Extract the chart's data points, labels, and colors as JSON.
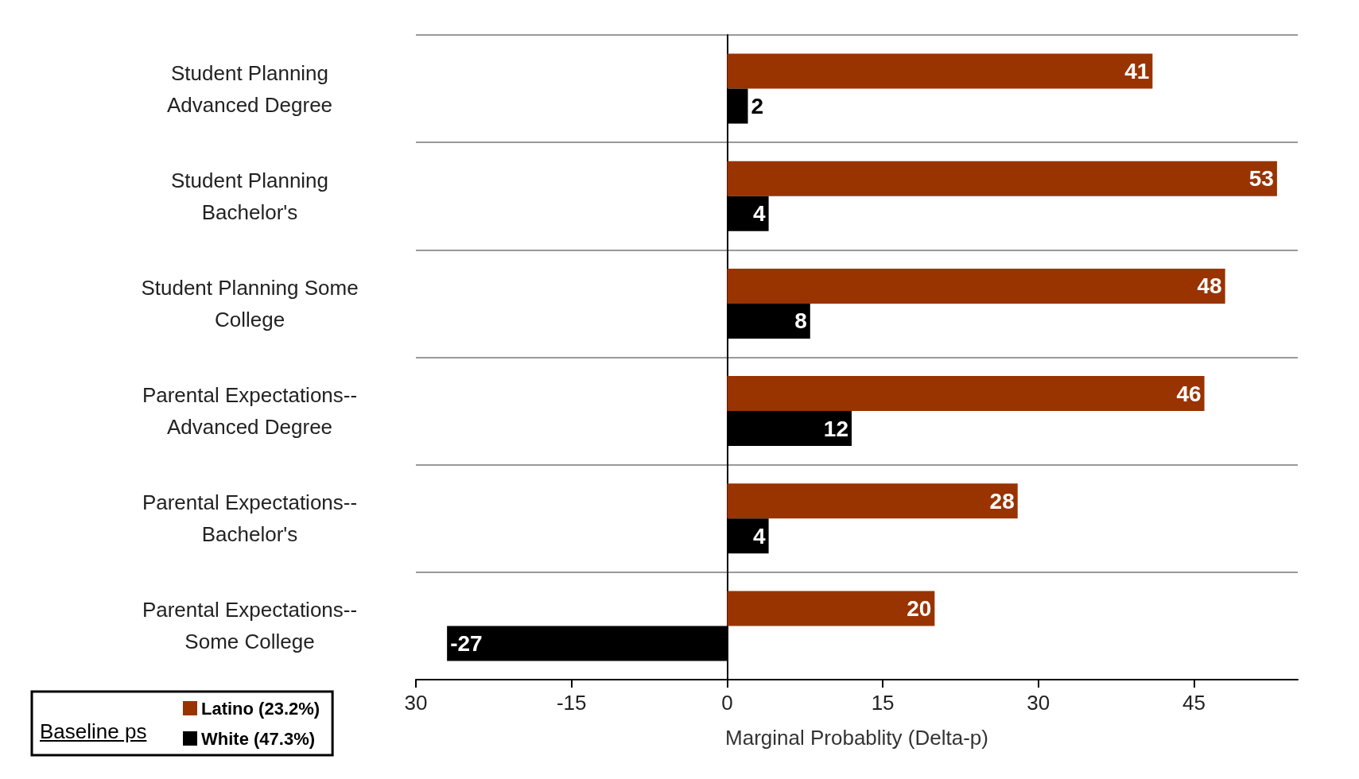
{
  "chart_data": {
    "type": "bar",
    "orientation": "horizontal",
    "xlabel": "Marginal Probablity (Delta-p)",
    "legend_title": "Baseline ps",
    "categories": [
      "Student Planning Advanced Degree",
      "Student Planning Bachelor's",
      "Student Planning Some College",
      "Parental Expectations--Advanced Degree",
      "Parental Expectations--Bachelor's",
      "Parental Expectations--Some College"
    ],
    "series": [
      {
        "name": "Latino (23.2%)",
        "color": "#993300",
        "values": [
          41,
          53,
          48,
          46,
          28,
          20
        ]
      },
      {
        "name": "White (47.3%)",
        "color": "#000000",
        "values": [
          2,
          4,
          8,
          12,
          4,
          -27
        ]
      }
    ],
    "xlim": [
      -30,
      55
    ],
    "xticks": [
      {
        "value": -30,
        "label": "30"
      },
      {
        "value": -15,
        "label": "-15"
      },
      {
        "value": 0,
        "label": "0"
      },
      {
        "value": 15,
        "label": "15"
      },
      {
        "value": 30,
        "label": "30"
      },
      {
        "value": 45,
        "label": "45"
      }
    ],
    "data_labels": true,
    "grid": "y",
    "legend": "bottom left"
  }
}
